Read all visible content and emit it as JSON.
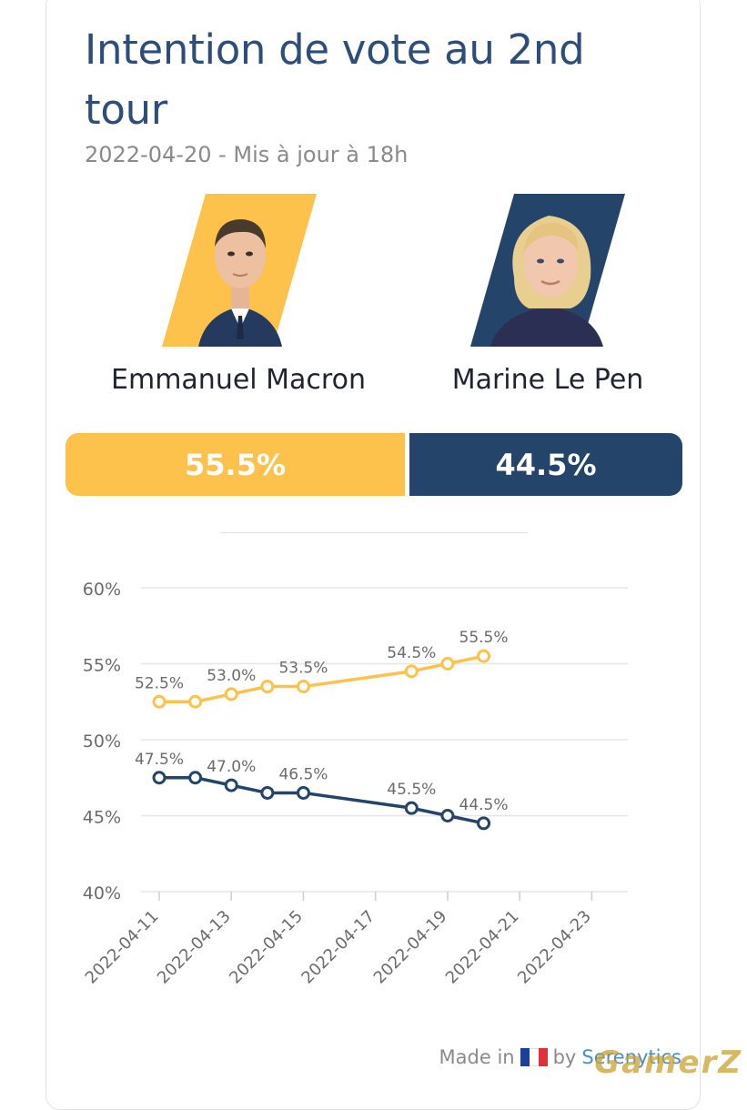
{
  "header": {
    "title": "Intention de vote au 2nd tour",
    "subtitle": "2022-04-20 - Mis à jour à 18h"
  },
  "candidates": [
    {
      "name": "Emmanuel Macron",
      "share": "55.5%",
      "color": "#fcc24b"
    },
    {
      "name": "Marine Le Pen",
      "share": "44.5%",
      "color": "#24446a"
    }
  ],
  "chart_data": {
    "type": "line",
    "x_tick_labels": [
      "2022-04-11",
      "2022-04-13",
      "2022-04-15",
      "2022-04-17",
      "2022-04-19",
      "2022-04-21",
      "2022-04-23"
    ],
    "y_tick_labels": [
      "60%",
      "55%",
      "50%",
      "45%",
      "40%"
    ],
    "ylim": [
      40,
      60
    ],
    "xlim": [
      "2022-04-11",
      "2022-04-24"
    ],
    "grid": true,
    "x": [
      "2022-04-11",
      "2022-04-12",
      "2022-04-13",
      "2022-04-14",
      "2022-04-15",
      "2022-04-18",
      "2022-04-19",
      "2022-04-20"
    ],
    "series": [
      {
        "color": "#fcc24b",
        "values": [
          52.5,
          52.5,
          53.0,
          53.5,
          53.5,
          54.5,
          55.0,
          55.5
        ],
        "labels": [
          "52.5%",
          "",
          "53.0%",
          "",
          "53.5%",
          "54.5%",
          "",
          "55.5%"
        ]
      },
      {
        "color": "#24446a",
        "values": [
          47.5,
          47.5,
          47.0,
          46.5,
          46.5,
          45.5,
          45.0,
          44.5
        ],
        "labels": [
          "47.5%",
          "",
          "47.0%",
          "",
          "46.5%",
          "45.5%",
          "",
          "44.5%"
        ]
      }
    ]
  },
  "footer": {
    "made_in": "Made in",
    "by": "by",
    "brand": "Serenytics",
    "flag_colors": [
      "#1f3e9c",
      "#ffffff",
      "#e2303a"
    ]
  },
  "watermark": "GamerZ"
}
